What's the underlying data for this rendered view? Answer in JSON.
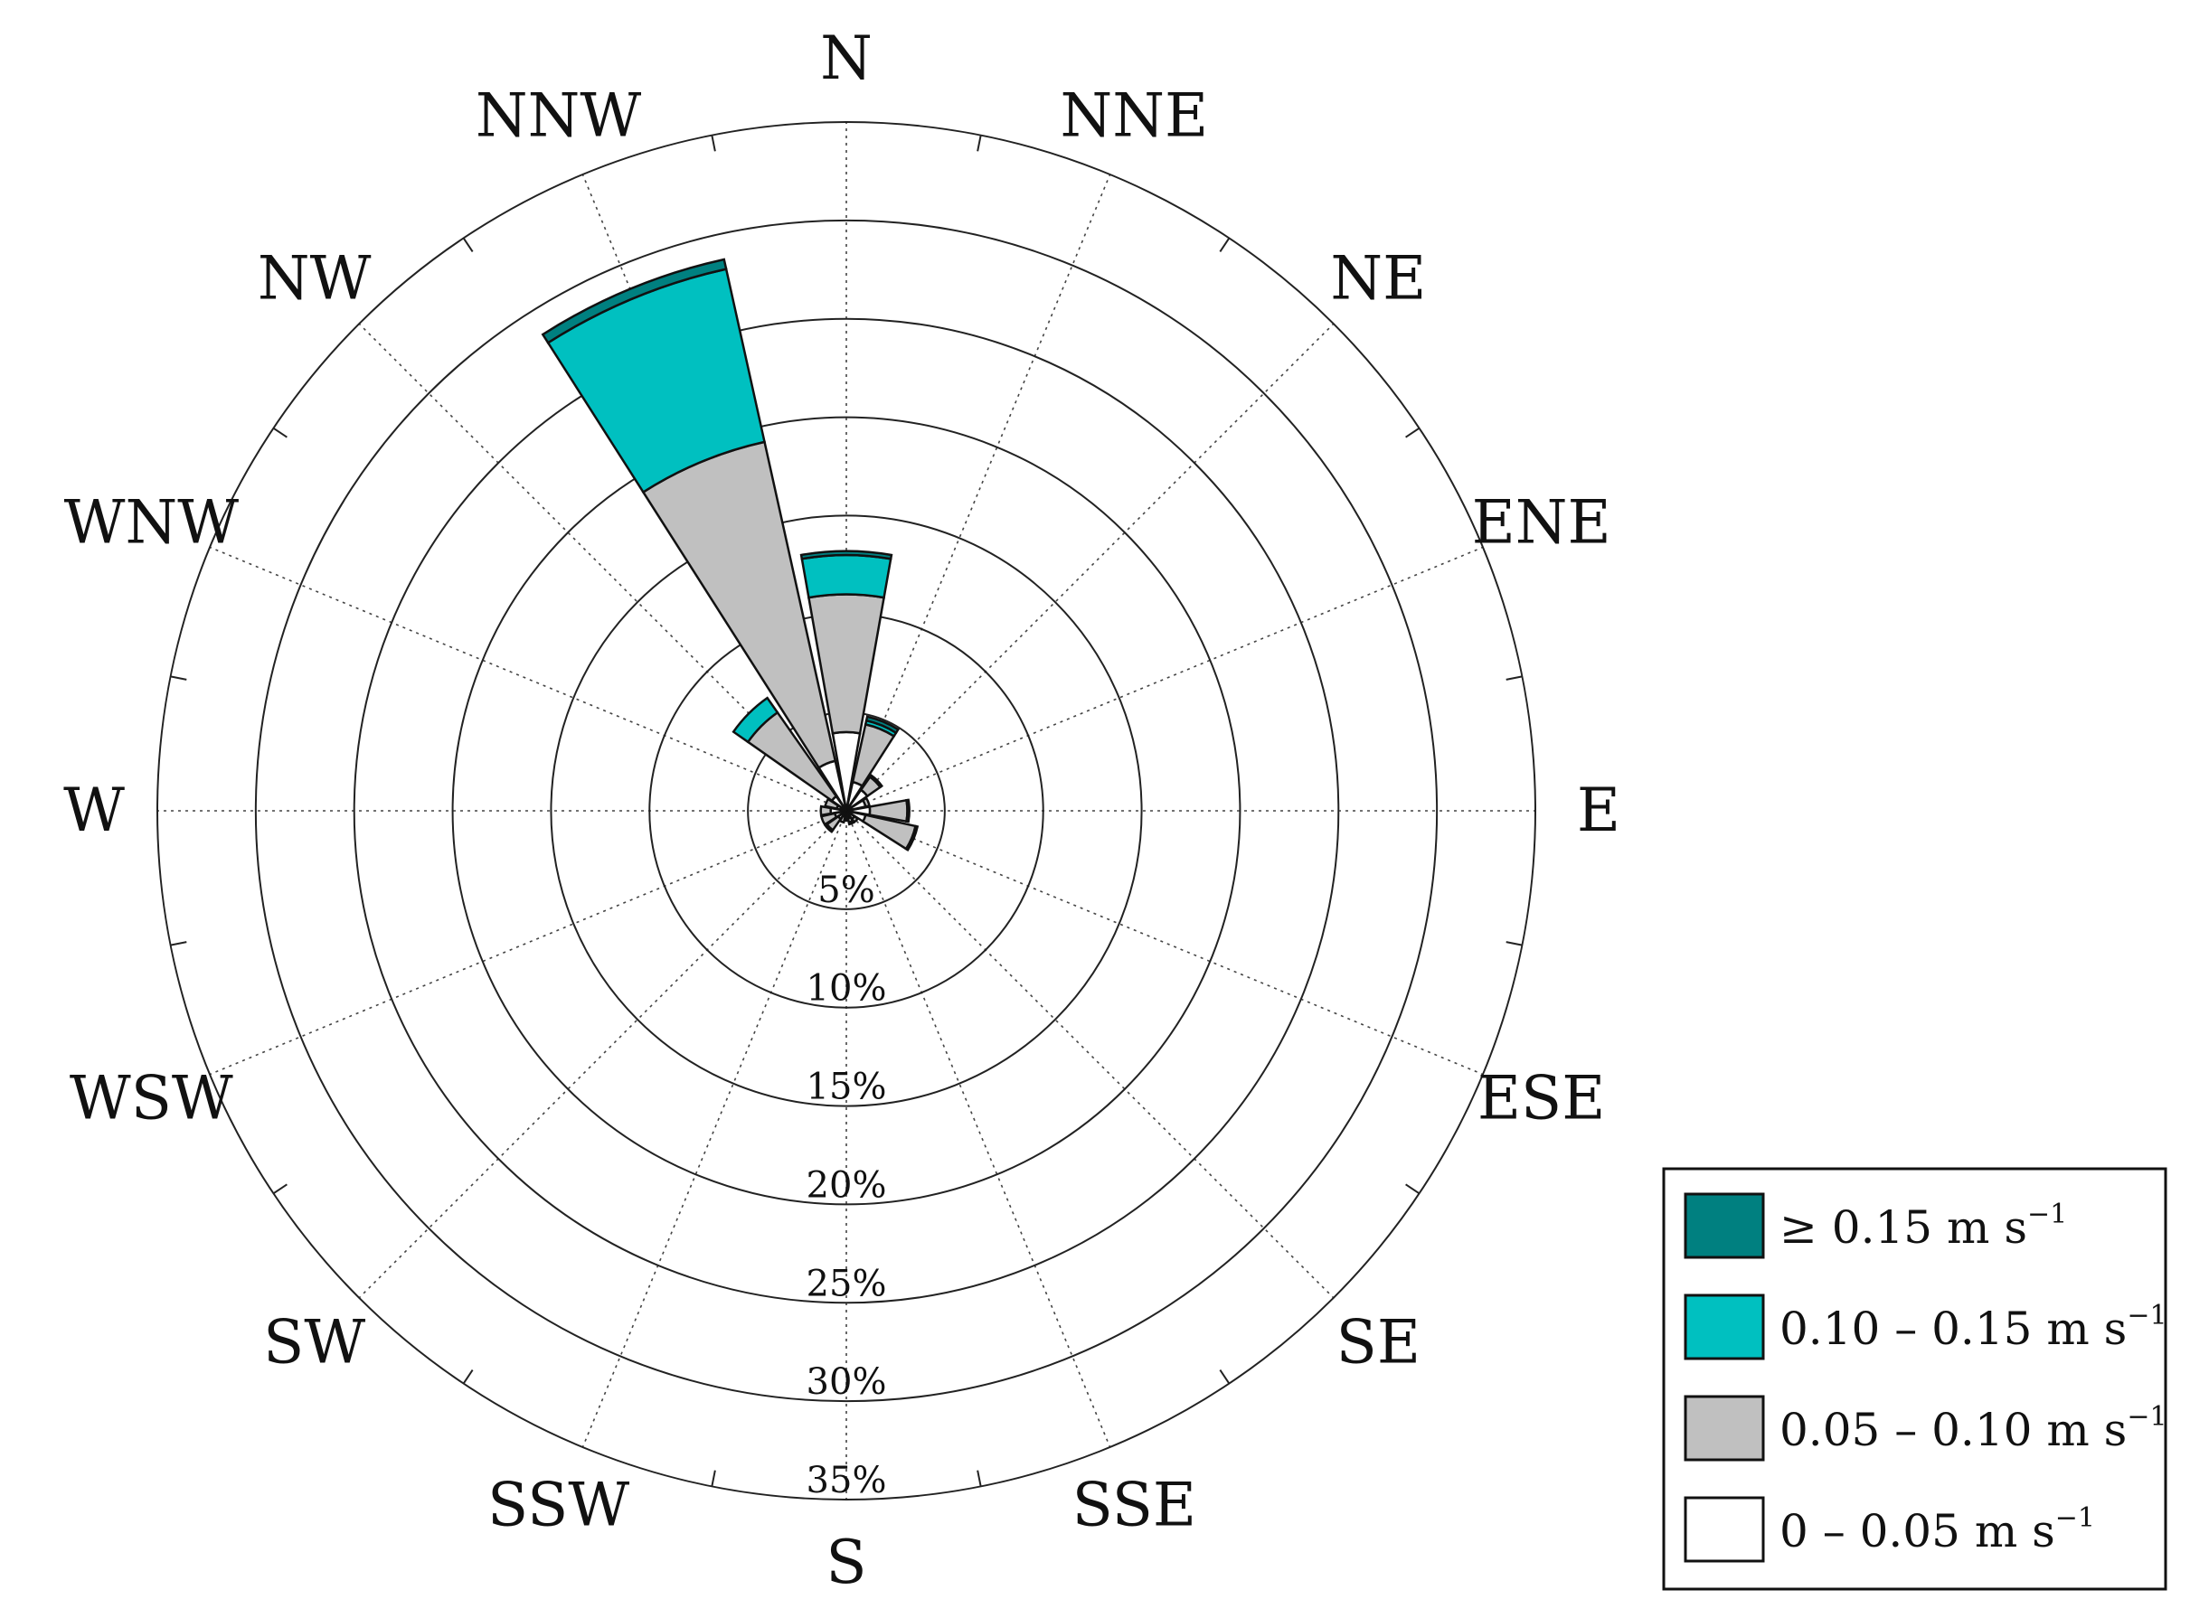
{
  "chart_data": {
    "type": "polar-stacked-bar",
    "directions": [
      "N",
      "NNE",
      "NE",
      "ENE",
      "E",
      "ESE",
      "SE",
      "SSE",
      "S",
      "SSW",
      "SW",
      "WSW",
      "W",
      "WNW",
      "NW",
      "NNW"
    ],
    "radial_ticks": [
      5,
      10,
      15,
      20,
      25,
      30,
      35
    ],
    "radial_tick_suffix": "%",
    "rmax": 35,
    "grid": true,
    "legend_position": "bottom-right",
    "series": [
      {
        "name": "0 – 0.05 m s",
        "unit_sup": "−1",
        "color": "#ffffff",
        "values": [
          4.0,
          1.5,
          1.3,
          1.0,
          1.2,
          1.0,
          0.5,
          0.4,
          0.4,
          0.3,
          0.5,
          0.6,
          0.8,
          0.5,
          0.9,
          2.6
        ]
      },
      {
        "name": "0.05 – 0.10 m s",
        "unit_sup": "−1",
        "color": "#c0c0c0",
        "values": [
          7.0,
          3.0,
          0.8,
          0.2,
          1.9,
          2.6,
          0.2,
          0.2,
          0.1,
          0.3,
          0.7,
          0.7,
          0.5,
          0.6,
          5.2,
          16.6
        ]
      },
      {
        "name": "0.10 – 0.15 m s",
        "unit_sup": "−1",
        "color": "#00c0c0",
        "values": [
          2.0,
          0.2,
          0.1,
          0.0,
          0.1,
          0.1,
          0.0,
          0.1,
          0.0,
          0.0,
          0.1,
          0.0,
          0.0,
          0.0,
          0.9,
          9.0
        ]
      },
      {
        "name": "≥ 0.15 m s",
        "unit_sup": "−1",
        "color": "#008080",
        "values": [
          0.2,
          0.2,
          0.0,
          0.0,
          0.0,
          0.0,
          0.0,
          0.0,
          0.0,
          0.0,
          0.0,
          0.0,
          0.0,
          0.0,
          0.0,
          0.5
        ]
      }
    ]
  }
}
